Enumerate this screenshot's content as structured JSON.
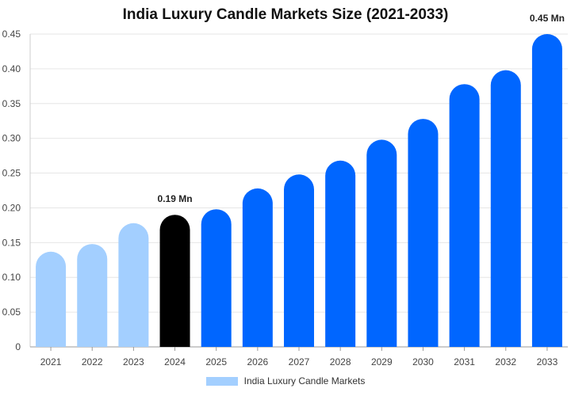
{
  "chart_data": {
    "type": "bar",
    "title": "India Luxury Candle Markets Size (2021-2033)",
    "categories": [
      "2021",
      "2022",
      "2023",
      "2024",
      "2025",
      "2026",
      "2027",
      "2028",
      "2029",
      "2030",
      "2031",
      "2032",
      "2033"
    ],
    "series": [
      {
        "name": "India Luxury Candle Markets",
        "values": [
          0.137,
          0.148,
          0.178,
          0.19,
          0.198,
          0.228,
          0.248,
          0.268,
          0.298,
          0.328,
          0.378,
          0.398,
          0.45
        ]
      }
    ],
    "ylim": [
      0,
      0.45
    ],
    "yticks": [
      "0",
      "0.05",
      "0.10",
      "0.15",
      "0.20",
      "0.25",
      "0.30",
      "0.35",
      "0.40",
      "0.45"
    ],
    "ytick_values": [
      0,
      0.05,
      0.1,
      0.15,
      0.2,
      0.25,
      0.3,
      0.35,
      0.4,
      0.45
    ],
    "data_labels": [
      {
        "category": "2024",
        "text": "0.19 Mn"
      },
      {
        "category": "2033",
        "text": "0.45 Mn"
      }
    ],
    "grid": "horizontal",
    "legend_position": "bottom",
    "colors": {
      "historical": "#a3cfff",
      "highlight": "#000000",
      "forecast": "#0066ff"
    },
    "color_groups": [
      "historical",
      "historical",
      "historical",
      "highlight",
      "forecast",
      "forecast",
      "forecast",
      "forecast",
      "forecast",
      "forecast",
      "forecast",
      "forecast",
      "forecast"
    ]
  }
}
